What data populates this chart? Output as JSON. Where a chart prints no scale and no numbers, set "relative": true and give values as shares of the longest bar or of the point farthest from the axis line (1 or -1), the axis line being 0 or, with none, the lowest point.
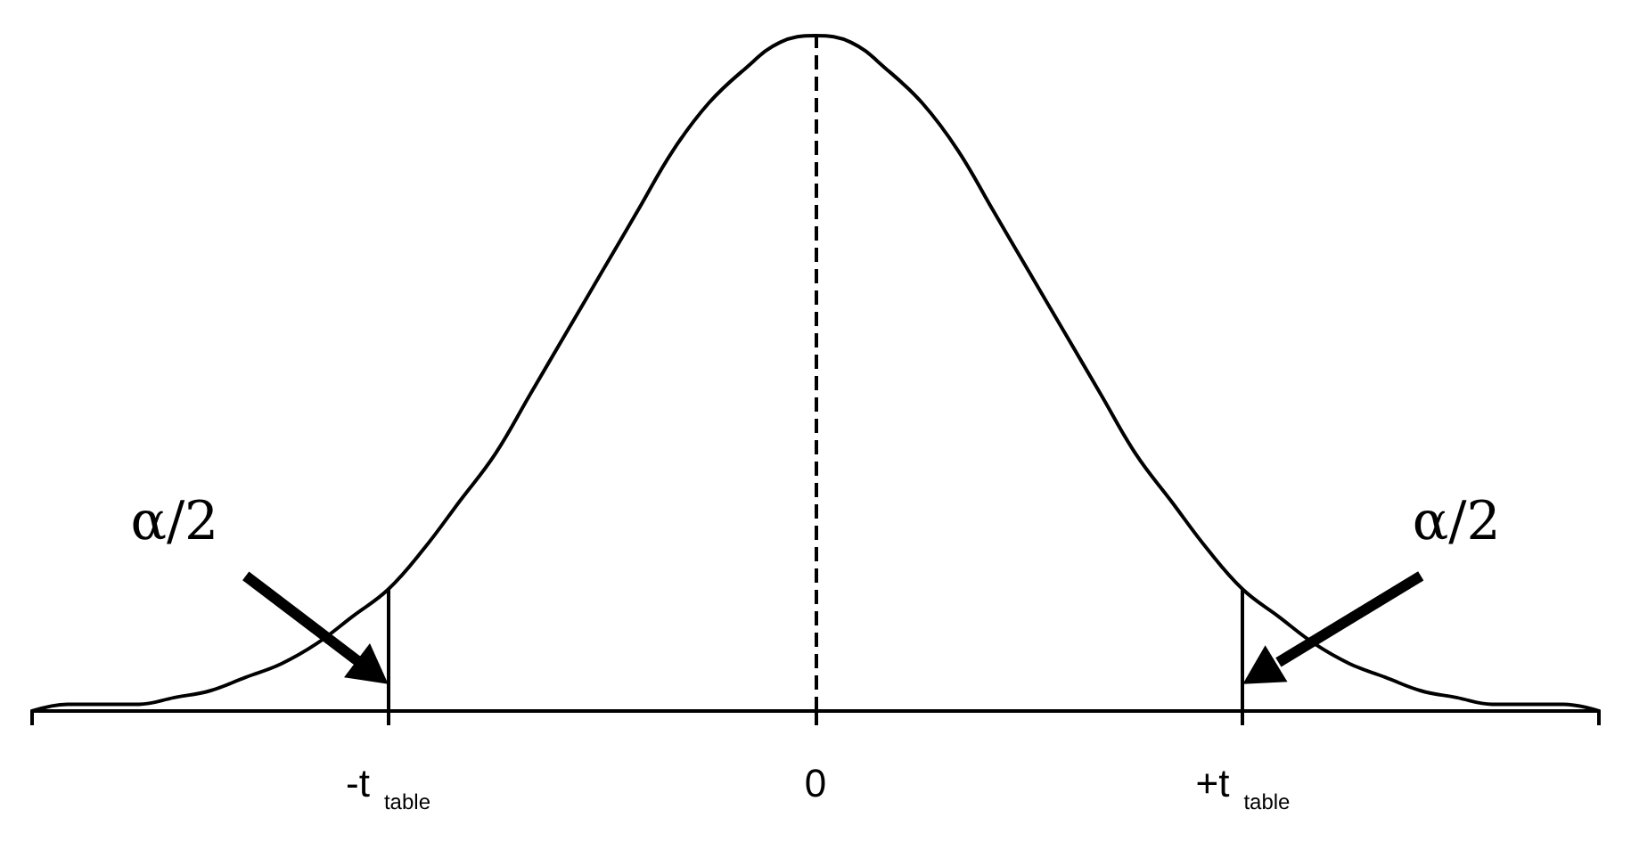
{
  "chart_data": {
    "type": "line",
    "relative": true,
    "categories": [
      null,
      null,
      null,
      null,
      null,
      null,
      null,
      null,
      null,
      null,
      "-t$_{table}$",
      null,
      null,
      null,
      null,
      null,
      null,
      null,
      null,
      null,
      null,
      null,
      "0",
      null,
      null,
      null,
      null,
      null,
      null,
      null,
      null,
      null,
      null,
      null,
      "+t$_{table}$",
      null,
      null,
      null,
      null,
      null,
      null,
      null,
      null,
      null,
      null
    ],
    "series": [
      {
        "color": "#000000",
        "values": [
          0.0,
          0.01,
          0.01,
          0.01,
          0.02,
          0.03,
          0.05,
          0.07,
          0.1,
          0.14,
          0.18,
          0.24,
          0.31,
          0.38,
          0.47,
          0.56,
          0.65,
          0.74,
          0.83,
          0.9,
          0.95,
          0.99,
          1,
          0.99,
          0.95,
          0.9,
          0.83,
          0.74,
          0.65,
          0.56,
          0.47,
          0.38,
          0.31,
          0.24,
          0.18,
          0.14,
          0.1,
          0.07,
          0.05,
          0.03,
          0.02,
          0.01,
          0.01,
          0.01,
          0.0
        ]
      }
    ],
    "marker": "none",
    "line_style": "solid",
    "tick_labels": "x",
    "ref_lines": [
      {
        "axis": "x",
        "value": "-t$_{table}$",
        "color": "#000000",
        "line_style": "solid"
      },
      {
        "axis": "x",
        "value": "0",
        "color": "#000000",
        "line_style": "dashed"
      },
      {
        "axis": "x",
        "value": "+t$_{table}$",
        "color": "#000000",
        "line_style": "solid"
      }
    ],
    "annotations": [
      "α/2",
      "α/2"
    ]
  }
}
